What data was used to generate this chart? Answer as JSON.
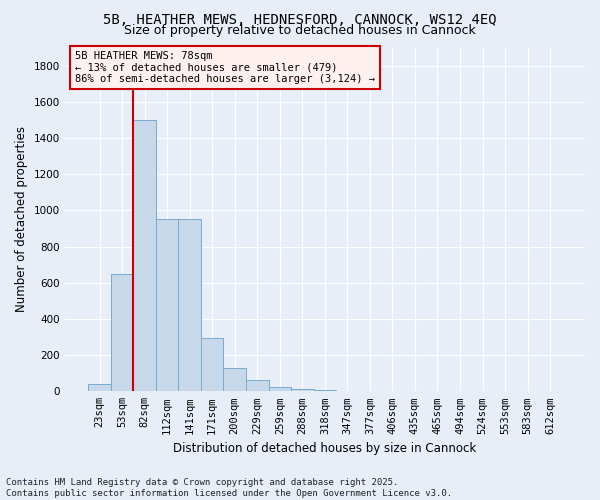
{
  "title_line1": "5B, HEATHER MEWS, HEDNESFORD, CANNOCK, WS12 4EQ",
  "title_line2": "Size of property relative to detached houses in Cannock",
  "xlabel": "Distribution of detached houses by size in Cannock",
  "ylabel": "Number of detached properties",
  "categories": [
    "23sqm",
    "53sqm",
    "82sqm",
    "112sqm",
    "141sqm",
    "171sqm",
    "200sqm",
    "229sqm",
    "259sqm",
    "288sqm",
    "318sqm",
    "347sqm",
    "377sqm",
    "406sqm",
    "435sqm",
    "465sqm",
    "494sqm",
    "524sqm",
    "553sqm",
    "583sqm",
    "612sqm"
  ],
  "values": [
    40,
    650,
    1500,
    950,
    950,
    295,
    130,
    65,
    25,
    10,
    5,
    2,
    1,
    1,
    0,
    0,
    0,
    0,
    0,
    0,
    0
  ],
  "bar_color": "#c8d8eb",
  "bar_edge_color": "#7aaacf",
  "bar_edge_width": 0.7,
  "vline_color": "#cc0000",
  "vline_x_index": 2,
  "annotation_text_line1": "5B HEATHER MEWS: 78sqm",
  "annotation_text_line2": "← 13% of detached houses are smaller (479)",
  "annotation_text_line3": "86% of semi-detached houses are larger (3,124) →",
  "annotation_box_facecolor": "#fff0f0",
  "annotation_box_edgecolor": "#cc0000",
  "ylim": [
    0,
    1900
  ],
  "yticks": [
    0,
    200,
    400,
    600,
    800,
    1000,
    1200,
    1400,
    1600,
    1800
  ],
  "background_color": "#e8eef8",
  "plot_bg_color": "#e8eef8",
  "grid_color": "#ffffff",
  "footer_line1": "Contains HM Land Registry data © Crown copyright and database right 2025.",
  "footer_line2": "Contains public sector information licensed under the Open Government Licence v3.0.",
  "title_fontsize": 10,
  "subtitle_fontsize": 9,
  "axis_label_fontsize": 8.5,
  "tick_fontsize": 7.5,
  "annotation_fontsize": 7.5,
  "footer_fontsize": 6.5
}
